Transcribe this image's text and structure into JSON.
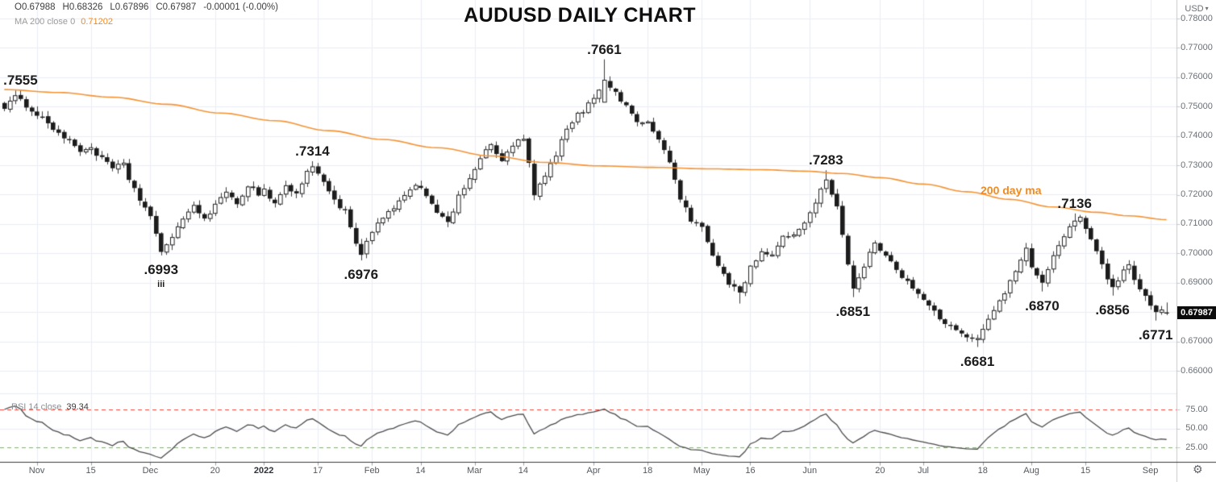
{
  "header": {
    "ohlc": {
      "open": "O0.67988",
      "high": "H0.68326",
      "low": "L0.67896",
      "close": "C0.67987",
      "change": "-0.00001 (-0.00%)"
    },
    "ma_readout": {
      "label": "MA 200 close 0",
      "value": "0.71202"
    }
  },
  "chart_data": {
    "type": "candlestick",
    "title": "AUDUSD DAILY CHART",
    "symbol": "AUDUSD",
    "timeframe": "Daily",
    "num_candles": 216,
    "price_range": [
      0.66,
      0.78
    ],
    "grid_step": 0.01,
    "axis_right": {
      "currency": "USD",
      "caret": "▾",
      "last_price": "0.67987"
    },
    "price_ticks": [
      {
        "label": "0.78000",
        "price": 0.78
      },
      {
        "label": "0.77000",
        "price": 0.77
      },
      {
        "label": "0.76000",
        "price": 0.76
      },
      {
        "label": "0.75000",
        "price": 0.75
      },
      {
        "label": "0.74000",
        "price": 0.74
      },
      {
        "label": "0.73000",
        "price": 0.73
      },
      {
        "label": "0.72000",
        "price": 0.72
      },
      {
        "label": "0.71000",
        "price": 0.71
      },
      {
        "label": "0.70000",
        "price": 0.7
      },
      {
        "label": "0.69000",
        "price": 0.69
      },
      {
        "label": "0.67000",
        "price": 0.67
      },
      {
        "label": "0.66000",
        "price": 0.66
      }
    ],
    "rsi_ticks": [
      {
        "label": "75.00",
        "value": 75
      },
      {
        "label": "50.00",
        "value": 50
      },
      {
        "label": "25.00",
        "value": 25
      }
    ],
    "x_ticks": [
      {
        "label": "Nov",
        "index": 6
      },
      {
        "label": "15",
        "index": 16
      },
      {
        "label": "Dec",
        "index": 27
      },
      {
        "label": "20",
        "index": 39
      },
      {
        "label": "2022",
        "index": 48,
        "bold": true
      },
      {
        "label": "17",
        "index": 58
      },
      {
        "label": "Feb",
        "index": 68
      },
      {
        "label": "14",
        "index": 77
      },
      {
        "label": "Mar",
        "index": 87
      },
      {
        "label": "14",
        "index": 96
      },
      {
        "label": "Apr",
        "index": 109
      },
      {
        "label": "18",
        "index": 119
      },
      {
        "label": "May",
        "index": 129
      },
      {
        "label": "16",
        "index": 138
      },
      {
        "label": "Jun",
        "index": 149
      },
      {
        "label": "20",
        "index": 162
      },
      {
        "label": "Jul",
        "index": 170
      },
      {
        "label": "18",
        "index": 181
      },
      {
        "label": "Aug",
        "index": 190
      },
      {
        "label": "15",
        "index": 200
      },
      {
        "label": "Sep",
        "index": 212
      }
    ],
    "swing_labels": [
      {
        "text": ".7555",
        "index": 3,
        "price": 0.7555,
        "side": "above"
      },
      {
        "text": ".7314",
        "index": 57,
        "price": 0.7314,
        "side": "above"
      },
      {
        "text": ".6993",
        "sub": "iii",
        "index": 29,
        "price": 0.6993,
        "side": "below"
      },
      {
        "text": ".6976",
        "index": 66,
        "price": 0.6976,
        "side": "below"
      },
      {
        "text": ".7661",
        "index": 111,
        "price": 0.7661,
        "side": "above"
      },
      {
        "text": ".7283",
        "index": 152,
        "price": 0.7283,
        "side": "above"
      },
      {
        "text": ".6851",
        "index": 157,
        "price": 0.6851,
        "side": "below"
      },
      {
        "text": ".6681",
        "index": 180,
        "price": 0.6681,
        "side": "below"
      },
      {
        "text": ".6870",
        "index": 192,
        "price": 0.687,
        "side": "below"
      },
      {
        "text": ".7136",
        "index": 198,
        "price": 0.7136,
        "side": "above"
      },
      {
        "text": ".6856",
        "index": 205,
        "price": 0.6856,
        "side": "below"
      },
      {
        "text": ".6771",
        "index": 213,
        "price": 0.6771,
        "side": "below"
      }
    ],
    "anchors": [
      [
        0,
        0.75
      ],
      [
        2,
        0.753
      ],
      [
        4,
        0.7505
      ],
      [
        6,
        0.7475
      ],
      [
        8,
        0.7445
      ],
      [
        10,
        0.741
      ],
      [
        12,
        0.738
      ],
      [
        14,
        0.735
      ],
      [
        16,
        0.736
      ],
      [
        18,
        0.732
      ],
      [
        20,
        0.729
      ],
      [
        22,
        0.73
      ],
      [
        23,
        0.7255
      ],
      [
        25,
        0.7185
      ],
      [
        27,
        0.7125
      ],
      [
        28,
        0.706
      ],
      [
        29,
        0.7005
      ],
      [
        31,
        0.706
      ],
      [
        33,
        0.712
      ],
      [
        35,
        0.7155
      ],
      [
        37,
        0.712
      ],
      [
        39,
        0.7165
      ],
      [
        41,
        0.72
      ],
      [
        43,
        0.7175
      ],
      [
        45,
        0.723
      ],
      [
        47,
        0.7205
      ],
      [
        48,
        0.7215
      ],
      [
        50,
        0.717
      ],
      [
        52,
        0.723
      ],
      [
        54,
        0.72
      ],
      [
        56,
        0.728
      ],
      [
        57,
        0.7295
      ],
      [
        59,
        0.725
      ],
      [
        61,
        0.718
      ],
      [
        63,
        0.714
      ],
      [
        65,
        0.703
      ],
      [
        66,
        0.6995
      ],
      [
        68,
        0.707
      ],
      [
        70,
        0.7125
      ],
      [
        72,
        0.715
      ],
      [
        74,
        0.719
      ],
      [
        76,
        0.724
      ],
      [
        78,
        0.72
      ],
      [
        80,
        0.7145
      ],
      [
        82,
        0.7098
      ],
      [
        84,
        0.719
      ],
      [
        86,
        0.726
      ],
      [
        88,
        0.732
      ],
      [
        90,
        0.737
      ],
      [
        92,
        0.731
      ],
      [
        94,
        0.737
      ],
      [
        96,
        0.739
      ],
      [
        97,
        0.73
      ],
      [
        98,
        0.72
      ],
      [
        100,
        0.726
      ],
      [
        102,
        0.734
      ],
      [
        104,
        0.742
      ],
      [
        106,
        0.747
      ],
      [
        108,
        0.7505
      ],
      [
        110,
        0.756
      ],
      [
        111,
        0.759
      ],
      [
        113,
        0.7545
      ],
      [
        115,
        0.75
      ],
      [
        117,
        0.7455
      ],
      [
        119,
        0.744
      ],
      [
        121,
        0.739
      ],
      [
        123,
        0.731
      ],
      [
        125,
        0.719
      ],
      [
        127,
        0.711
      ],
      [
        129,
        0.709
      ],
      [
        130,
        0.703
      ],
      [
        132,
        0.696
      ],
      [
        134,
        0.69
      ],
      [
        136,
        0.6865
      ],
      [
        138,
        0.695
      ],
      [
        140,
        0.701
      ],
      [
        142,
        0.699
      ],
      [
        144,
        0.705
      ],
      [
        146,
        0.707
      ],
      [
        148,
        0.71
      ],
      [
        150,
        0.718
      ],
      [
        152,
        0.725
      ],
      [
        154,
        0.716
      ],
      [
        155,
        0.706
      ],
      [
        156,
        0.696
      ],
      [
        157,
        0.688
      ],
      [
        159,
        0.696
      ],
      [
        161,
        0.703
      ],
      [
        163,
        0.7
      ],
      [
        165,
        0.695
      ],
      [
        167,
        0.69
      ],
      [
        169,
        0.686
      ],
      [
        171,
        0.682
      ],
      [
        173,
        0.678
      ],
      [
        175,
        0.675
      ],
      [
        177,
        0.672
      ],
      [
        179,
        0.6705
      ],
      [
        180,
        0.671
      ],
      [
        182,
        0.678
      ],
      [
        184,
        0.684
      ],
      [
        186,
        0.69
      ],
      [
        188,
        0.698
      ],
      [
        189,
        0.701
      ],
      [
        190,
        0.696
      ],
      [
        192,
        0.689
      ],
      [
        194,
        0.699
      ],
      [
        196,
        0.706
      ],
      [
        197,
        0.709
      ],
      [
        198,
        0.711
      ],
      [
        199,
        0.712
      ],
      [
        200,
        0.708
      ],
      [
        202,
        0.7
      ],
      [
        204,
        0.692
      ],
      [
        205,
        0.6885
      ],
      [
        207,
        0.6945
      ],
      [
        208,
        0.6955
      ],
      [
        210,
        0.688
      ],
      [
        212,
        0.683
      ],
      [
        213,
        0.68
      ],
      [
        215,
        0.67987
      ]
    ],
    "key_candles": [
      {
        "i": 2,
        "h": 0.7555
      },
      {
        "i": 29,
        "l": 0.6993,
        "c": 0.7005
      },
      {
        "i": 57,
        "h": 0.7314,
        "c": 0.7295
      },
      {
        "i": 66,
        "l": 0.6976,
        "c": 0.6995
      },
      {
        "i": 111,
        "o": 0.7515,
        "h": 0.7661,
        "c": 0.759
      },
      {
        "i": 136,
        "l": 0.6829
      },
      {
        "i": 152,
        "h": 0.7283,
        "c": 0.725
      },
      {
        "i": 157,
        "l": 0.6851,
        "c": 0.688
      },
      {
        "i": 180,
        "l": 0.6681,
        "c": 0.671
      },
      {
        "i": 192,
        "l": 0.687,
        "c": 0.69
      },
      {
        "i": 198,
        "h": 0.7136,
        "c": 0.711
      },
      {
        "i": 205,
        "l": 0.6856,
        "c": 0.6885
      },
      {
        "i": 213,
        "l": 0.6771,
        "c": 0.68
      },
      {
        "i": 215,
        "o": 0.67988,
        "h": 0.68326,
        "l": 0.67896,
        "c": 0.67987
      }
    ],
    "ma200": {
      "label": "200 day ma",
      "value": 0.71202,
      "points": [
        [
          0,
          0.7558
        ],
        [
          10,
          0.7548
        ],
        [
          20,
          0.7532
        ],
        [
          30,
          0.7508
        ],
        [
          40,
          0.7478
        ],
        [
          50,
          0.7452
        ],
        [
          60,
          0.7418
        ],
        [
          70,
          0.7388
        ],
        [
          80,
          0.736
        ],
        [
          90,
          0.7332
        ],
        [
          100,
          0.731
        ],
        [
          110,
          0.7298
        ],
        [
          120,
          0.7293
        ],
        [
          130,
          0.7288
        ],
        [
          140,
          0.7285
        ],
        [
          148,
          0.728
        ],
        [
          155,
          0.7272
        ],
        [
          162,
          0.7258
        ],
        [
          170,
          0.7236
        ],
        [
          178,
          0.721
        ],
        [
          186,
          0.7184
        ],
        [
          194,
          0.7158
        ],
        [
          202,
          0.714
        ],
        [
          208,
          0.7128
        ],
        [
          215,
          0.7115
        ]
      ]
    },
    "rsi": {
      "label": "RSI 14 close",
      "value": "39.34",
      "period": 14,
      "overbought": 75,
      "oversold": 25
    },
    "colors": {
      "up": "#ffffff",
      "down": "#1c1c1c",
      "outline": "#222222",
      "wick": "#3c3c3c",
      "grid": "#e9eef5",
      "ma": "#f59334",
      "rsi_line": "#4c4c4c",
      "overbought": "#f4473c",
      "oversold": "#55d41e",
      "axis_line": "#c6c9cd",
      "baseline": "#3a3a3a"
    }
  },
  "footer": {
    "gear_icon": "⚙"
  }
}
